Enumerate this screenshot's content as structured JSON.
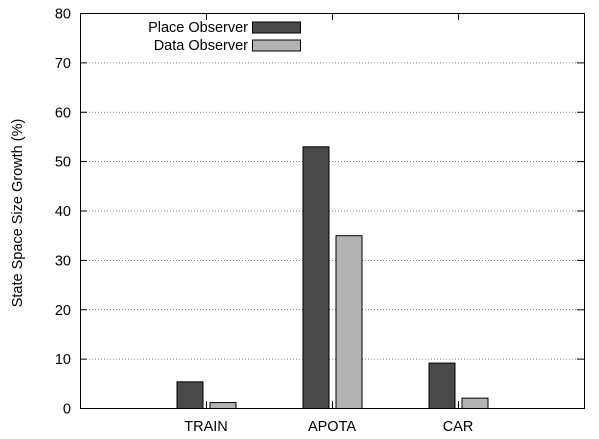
{
  "chart_data": {
    "type": "bar",
    "title": "",
    "xlabel": "",
    "ylabel": "State Space Size Growth (%)",
    "ylim": [
      0,
      80
    ],
    "yticks": [
      0,
      10,
      20,
      30,
      40,
      50,
      60,
      70,
      80
    ],
    "grid": true,
    "legend_position": "top-left",
    "categories": [
      "TRAIN",
      "APOTA",
      "CAR"
    ],
    "series": [
      {
        "name": "Place Observer",
        "color": "#4a4a4a",
        "values": [
          5.4,
          53.0,
          9.2
        ]
      },
      {
        "name": "Data Observer",
        "color": "#b3b3b3",
        "values": [
          1.2,
          35.0,
          2.1
        ]
      }
    ]
  }
}
